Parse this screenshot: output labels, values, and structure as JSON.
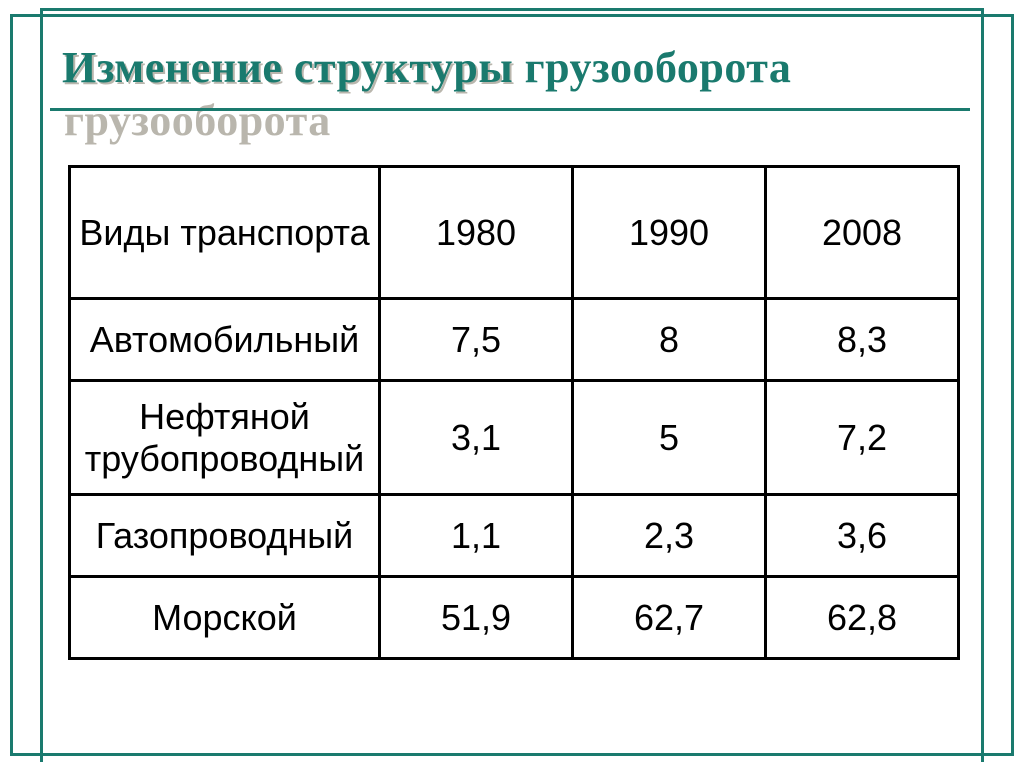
{
  "title": "Изменение структуры грузооборота",
  "table": {
    "type": "table",
    "columns": [
      "Виды транспорта",
      "1980",
      "1990",
      "2008"
    ],
    "rows": [
      [
        "Автомобильный",
        "7,5",
        "8",
        "8,3"
      ],
      [
        "Нефтяной трубопроводный",
        "3,1",
        "5",
        "7,2"
      ],
      [
        "Газопроводный",
        "1,1",
        "2,3",
        "3,6"
      ],
      [
        "Морской",
        "51,9",
        "62,7",
        "62,8"
      ]
    ],
    "border_color": "#000000",
    "title_color": "#1a7a6e",
    "title_shadow": "#b9b6ad",
    "frame_color": "#1a7a6e",
    "background_color": "#ffffff",
    "header_fontsize": 36,
    "cell_fontsize": 36,
    "title_fontsize": 44
  }
}
